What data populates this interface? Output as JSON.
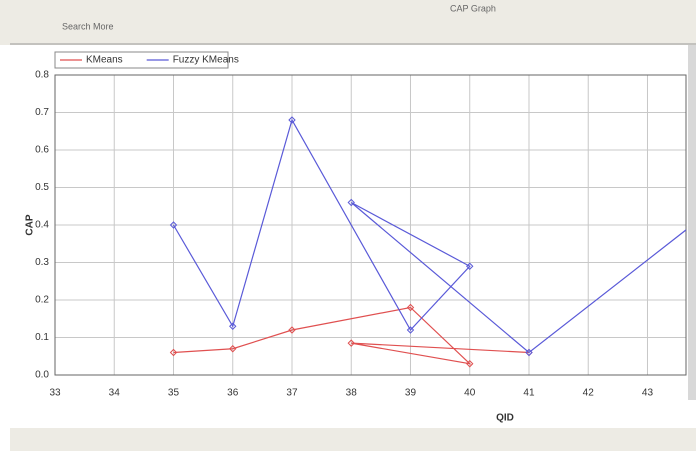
{
  "toolbar": {
    "search": "Search More",
    "title": "CAP Graph"
  },
  "chart_data": {
    "type": "line",
    "xlabel": "QID",
    "ylabel": "CAP",
    "xlim": [
      33,
      43.65
    ],
    "xticks": [
      33,
      34,
      35,
      36,
      37,
      38,
      39,
      40,
      41,
      42,
      43
    ],
    "ylim": [
      0,
      0.8
    ],
    "yticks": [
      {
        "value": 0,
        "label": "0.0"
      },
      0.1,
      0.2,
      0.3,
      0.4,
      0.5,
      0.6,
      0.7,
      0.8
    ],
    "grid": true,
    "legend": "top-left",
    "series": [
      {
        "name": "KMeans",
        "color": "#e05050",
        "x": [
          35,
          36,
          37,
          39,
          40,
          38,
          41
        ],
        "values": [
          0.06,
          0.07,
          0.12,
          0.18,
          0.03,
          0.085,
          0.06
        ]
      },
      {
        "name": "Fuzzy KMeans",
        "color": "#5a5ad8",
        "x": [
          35,
          36,
          37,
          39,
          40,
          38,
          41,
          44
        ],
        "values": [
          0.4,
          0.13,
          0.68,
          0.12,
          0.29,
          0.46,
          0.06,
          0.43
        ]
      }
    ]
  }
}
